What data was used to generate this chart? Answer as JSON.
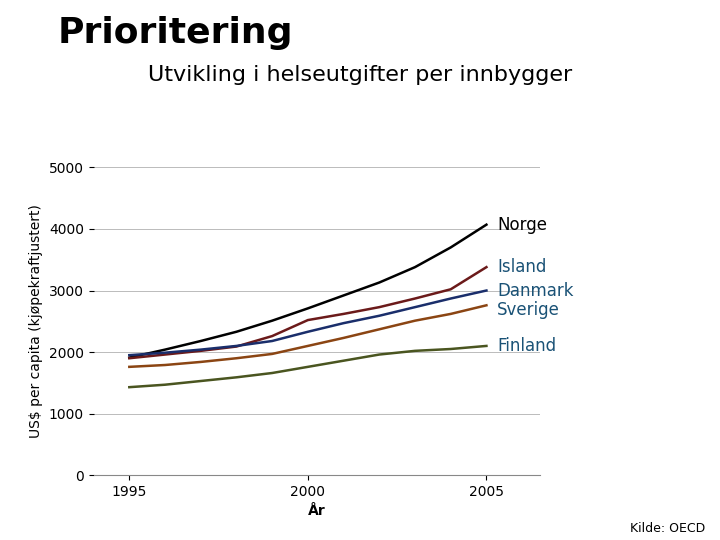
{
  "title_main": "Prioritering",
  "title_sub": "Utvikling i helseutgifter per innbygger",
  "xlabel": "År",
  "ylabel": "US$ per capita (kjøpekraftjustert)",
  "source": "Kilde: OECD",
  "ylim": [
    0,
    5000
  ],
  "yticks": [
    0,
    1000,
    2000,
    3000,
    4000,
    5000
  ],
  "xlim": [
    1994.0,
    2006.5
  ],
  "xticks": [
    1995,
    2000,
    2005
  ],
  "series": {
    "Norge": {
      "color": "#000000",
      "label_color": "#000000",
      "years": [
        1995,
        1996,
        1997,
        1998,
        1999,
        2000,
        2001,
        2002,
        2003,
        2004,
        2005
      ],
      "values": [
        1910,
        2040,
        2180,
        2330,
        2510,
        2710,
        2920,
        3130,
        3380,
        3700,
        4070
      ]
    },
    "Island": {
      "color": "#6B1A1A",
      "label_color": "#1A5276",
      "years": [
        1995,
        1996,
        1997,
        1998,
        1999,
        2000,
        2001,
        2002,
        2003,
        2004,
        2005
      ],
      "values": [
        1900,
        1960,
        2020,
        2090,
        2260,
        2520,
        2620,
        2730,
        2870,
        3020,
        3380
      ]
    },
    "Danmark": {
      "color": "#1A2E6B",
      "label_color": "#1A5276",
      "years": [
        1995,
        1996,
        1997,
        1998,
        1999,
        2000,
        2001,
        2002,
        2003,
        2004,
        2005
      ],
      "values": [
        1950,
        1990,
        2040,
        2100,
        2180,
        2330,
        2470,
        2590,
        2730,
        2870,
        3000
      ]
    },
    "Sverige": {
      "color": "#8B4513",
      "label_color": "#1A5276",
      "years": [
        1995,
        1996,
        1997,
        1998,
        1999,
        2000,
        2001,
        2002,
        2003,
        2004,
        2005
      ],
      "values": [
        1760,
        1790,
        1840,
        1900,
        1970,
        2100,
        2230,
        2370,
        2510,
        2620,
        2760
      ]
    },
    "Finland": {
      "color": "#4A5520",
      "label_color": "#1A5276",
      "years": [
        1995,
        1996,
        1997,
        1998,
        1999,
        2000,
        2001,
        2002,
        2003,
        2004,
        2005
      ],
      "values": [
        1430,
        1470,
        1530,
        1590,
        1660,
        1760,
        1860,
        1960,
        2020,
        2050,
        2100
      ]
    }
  },
  "background_color": "#ffffff",
  "grid_color": "#bbbbbb",
  "title_main_fontsize": 26,
  "title_sub_fontsize": 16,
  "axis_label_fontsize": 10,
  "tick_fontsize": 10,
  "country_label_fontsize": 12,
  "source_fontsize": 9
}
